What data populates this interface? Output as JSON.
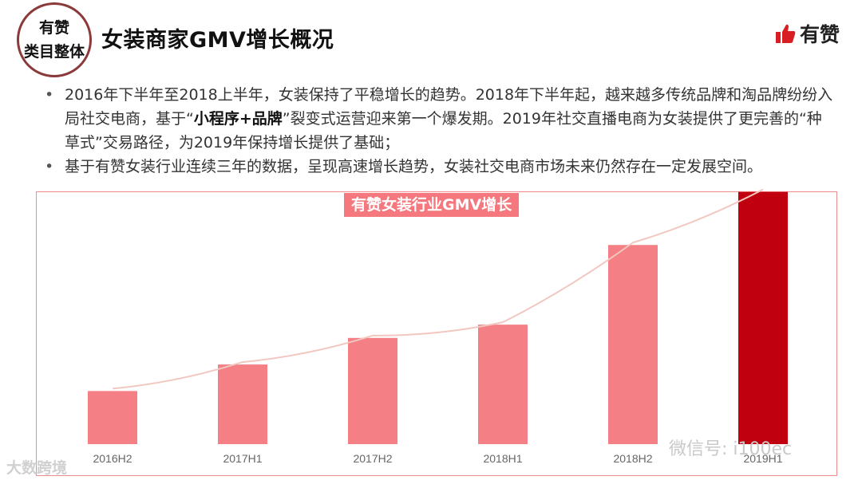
{
  "header": {
    "badge_line1": "有赞",
    "badge_line2": "类目整体",
    "title": "女装商家GMV增长概况",
    "brand": "有赞"
  },
  "bullets": [
    {
      "pre": "2016年下半年至2018上半年，女装保持了平稳增长的趋势。2018年下半年起，越来越多传统品牌和淘品牌纷纷入局社交电商，基于“",
      "bold": "小程序+品牌",
      "post": "”裂变式运营迎来第一个爆发期。2019年社交直播电商为女装提供了更完善的“种草式”交易路径，为2019年保持增长提供了基础；"
    },
    {
      "pre": "基于有赞女装行业连续三年的数据，呈现高速增长趋势，女装社交电商市场未来仍然存在一定发展空间。",
      "bold": "",
      "post": ""
    }
  ],
  "chart_data": {
    "type": "bar",
    "title": "有赞女装行业GMV增长",
    "categories": [
      "2016H2",
      "2017H1",
      "2017H2",
      "2018H1",
      "2018H2",
      "2019H1"
    ],
    "values": [
      20,
      30,
      40,
      45,
      75,
      95
    ],
    "ylim": [
      0,
      100
    ],
    "trendline": true,
    "colors": [
      "#f47f84",
      "#f47f84",
      "#f47f84",
      "#f47f84",
      "#f47f84",
      "#c0000e"
    ],
    "trend_color": "#f2c7c0",
    "xlabel": "",
    "ylabel": ""
  },
  "watermarks": {
    "left": "大数跨境",
    "right": "微信号: i100ec"
  }
}
